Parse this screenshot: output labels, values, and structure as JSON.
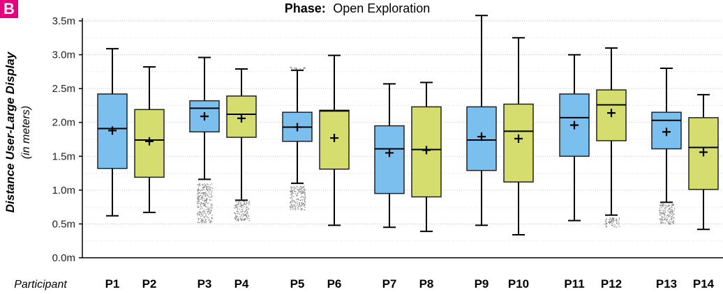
{
  "panel_label": "B",
  "chart_data": {
    "type": "box",
    "title_prefix": "Phase:",
    "title_value": "Open Exploration",
    "ylabel": "Distance User-Large Display",
    "ylabel_sub": "(in meters)",
    "xlabel": "Participant",
    "ylim": [
      0,
      3.5
    ],
    "yticks": [
      0,
      0.5,
      1.0,
      1.5,
      2.0,
      2.5,
      3.0,
      3.5
    ],
    "ytick_labels": [
      "0.0m",
      "0.5m",
      "1.0m",
      "1.5m",
      "2.0m",
      "2.5m",
      "3.0m",
      "3.5m"
    ],
    "grid": true,
    "colors": {
      "odd": "#7bbfee",
      "even": "#d4dd6e",
      "outlier": "#888888"
    },
    "boxes": [
      {
        "label": "P1",
        "whislo": 0.62,
        "q1": 1.32,
        "med": 1.91,
        "q3": 2.42,
        "whishi": 3.09,
        "mean": 1.88,
        "outliers": []
      },
      {
        "label": "P2",
        "whislo": 0.67,
        "q1": 1.19,
        "med": 1.74,
        "q3": 2.19,
        "whishi": 2.82,
        "mean": 1.72,
        "outliers": []
      },
      {
        "label": "P3",
        "whislo": 1.16,
        "q1": 1.86,
        "med": 2.21,
        "q3": 2.32,
        "whishi": 2.96,
        "mean": 2.09,
        "outliers": [
          [
            0.52,
            1.1
          ]
        ]
      },
      {
        "label": "P4",
        "whislo": 0.85,
        "q1": 1.78,
        "med": 2.12,
        "q3": 2.39,
        "whishi": 2.79,
        "mean": 2.06,
        "outliers": [
          [
            0.55,
            0.84
          ]
        ]
      },
      {
        "label": "P5",
        "whislo": 1.1,
        "q1": 1.72,
        "med": 1.93,
        "q3": 2.15,
        "whishi": 2.77,
        "mean": 1.93,
        "outliers": [
          [
            0.7,
            1.06
          ],
          [
            2.78,
            2.82
          ]
        ]
      },
      {
        "label": "P6",
        "whislo": 0.48,
        "q1": 1.31,
        "med": 2.17,
        "q3": 2.18,
        "whishi": 2.99,
        "mean": 1.77,
        "outliers": []
      },
      {
        "label": "P7",
        "whislo": 0.45,
        "q1": 0.95,
        "med": 1.61,
        "q3": 1.95,
        "whishi": 2.57,
        "mean": 1.55,
        "outliers": []
      },
      {
        "label": "P8",
        "whislo": 0.39,
        "q1": 0.9,
        "med": 1.6,
        "q3": 2.23,
        "whishi": 2.59,
        "mean": 1.59,
        "outliers": []
      },
      {
        "label": "P9",
        "whislo": 0.48,
        "q1": 1.29,
        "med": 1.74,
        "q3": 2.23,
        "whishi": 3.58,
        "mean": 1.79,
        "outliers": []
      },
      {
        "label": "P10",
        "whislo": 0.34,
        "q1": 1.12,
        "med": 1.87,
        "q3": 2.27,
        "whishi": 3.25,
        "mean": 1.76,
        "outliers": []
      },
      {
        "label": "P11",
        "whislo": 0.55,
        "q1": 1.5,
        "med": 2.07,
        "q3": 2.42,
        "whishi": 3.0,
        "mean": 1.96,
        "outliers": []
      },
      {
        "label": "P12",
        "whislo": 0.63,
        "q1": 1.73,
        "med": 2.26,
        "q3": 2.48,
        "whishi": 3.1,
        "mean": 2.14,
        "outliers": [
          [
            0.46,
            0.6
          ]
        ]
      },
      {
        "label": "P13",
        "whislo": 0.82,
        "q1": 1.61,
        "med": 2.03,
        "q3": 2.15,
        "whishi": 2.8,
        "mean": 1.86,
        "outliers": [
          [
            0.5,
            0.8
          ]
        ]
      },
      {
        "label": "P14",
        "whislo": 0.42,
        "q1": 1.01,
        "med": 1.63,
        "q3": 2.07,
        "whishi": 2.41,
        "mean": 1.56,
        "outliers": []
      }
    ]
  }
}
